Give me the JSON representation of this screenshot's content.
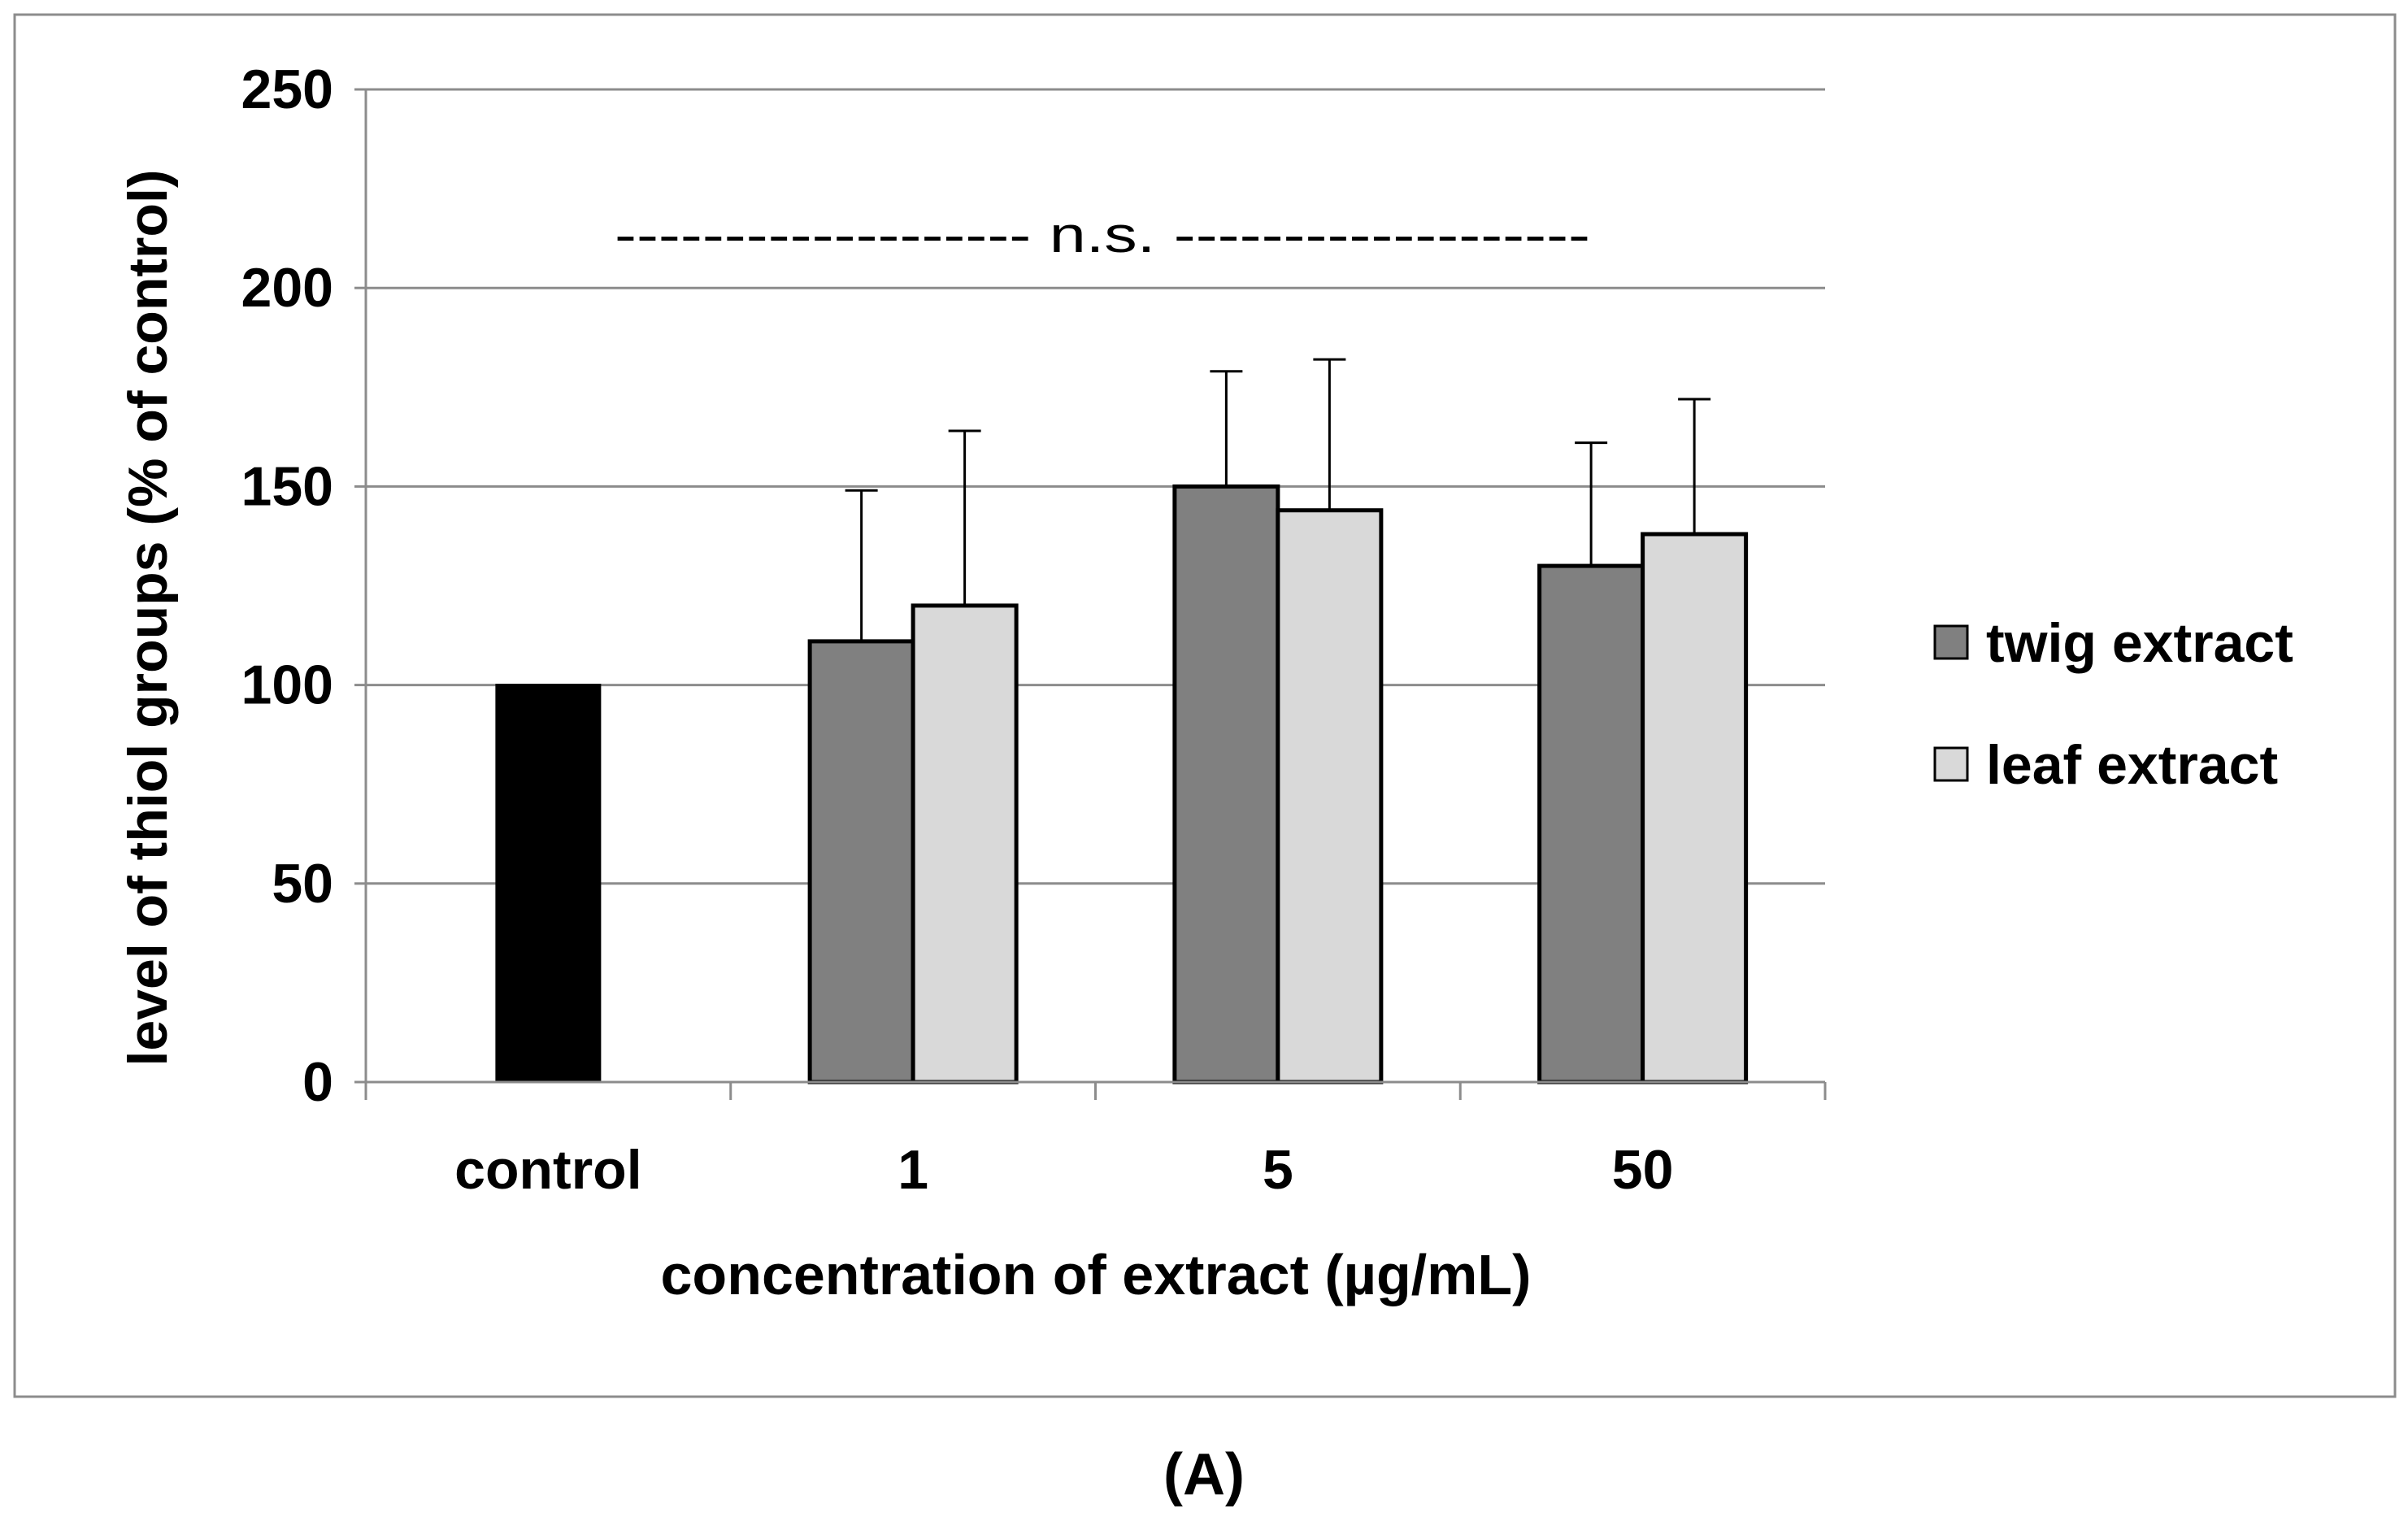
{
  "chart_data": {
    "type": "bar",
    "title": "",
    "panel_label": "(A)",
    "xlabel": "concentration of extract (µg/mL)",
    "ylabel": "level of thiol groups (% of control)",
    "ylim": [
      0,
      250
    ],
    "yticks": [
      "0",
      "50",
      "100",
      "150",
      "200",
      "250"
    ],
    "grid": true,
    "categories": [
      "control",
      "1",
      "5",
      "50"
    ],
    "control": {
      "name": "control",
      "value": 100,
      "color": "#000000"
    },
    "series": [
      {
        "name": "twig extract",
        "color": "#808080",
        "values": [
          null,
          111,
          150,
          130
        ],
        "errors": [
          null,
          38,
          29,
          31
        ]
      },
      {
        "name": "leaf extract",
        "color": "#d9d9d9",
        "values": [
          null,
          120,
          144,
          138
        ],
        "errors": [
          null,
          44,
          38,
          34
        ]
      }
    ],
    "legend_position": "right",
    "annotation": {
      "text": "------------------- n.s. -------------------"
    }
  }
}
